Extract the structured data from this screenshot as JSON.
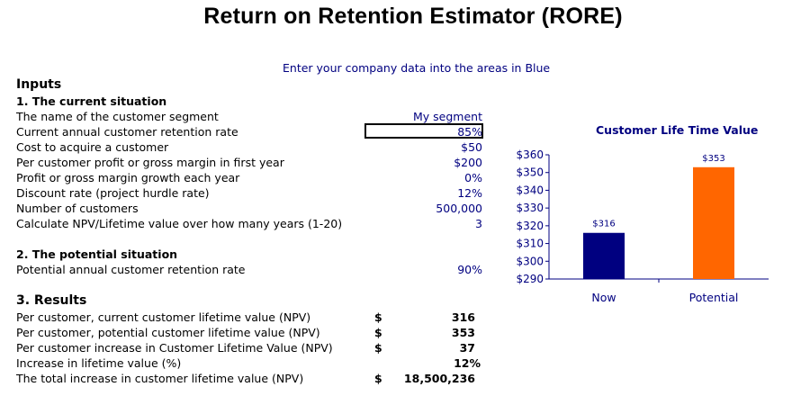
{
  "title": "Return on Retention Estimator (RORE)",
  "instruction": "Enter your company data into the areas in Blue",
  "inputs": {
    "heading": "Inputs",
    "current": {
      "heading": "1. The current situation",
      "rows": [
        {
          "label": "The name of the customer segment",
          "value": "My segment"
        },
        {
          "label": "Current annual customer retention rate",
          "value": "85%"
        },
        {
          "label": "Cost to acquire a customer",
          "value": "$50"
        },
        {
          "label": "Per customer profit or gross margin in first year",
          "value": "$200"
        },
        {
          "label": "Profit or gross margin growth each year",
          "value": "0%"
        },
        {
          "label": "Discount rate (project hurdle rate)",
          "value": "12%"
        },
        {
          "label": "Number of customers",
          "value": "500,000"
        },
        {
          "label": "Calculate NPV/Lifetime value over how many years (1-20)",
          "value": "3"
        }
      ]
    },
    "potential": {
      "heading": "2. The potential situation",
      "rows": [
        {
          "label": "Potential annual customer retention rate",
          "value": "90%"
        }
      ]
    }
  },
  "results": {
    "heading": "3. Results",
    "rows": [
      {
        "label": "Per customer, current customer lifetime value (NPV)",
        "currency": "$",
        "value": "316"
      },
      {
        "label": "Per customer, potential customer lifetime value (NPV)",
        "currency": "$",
        "value": "353"
      },
      {
        "label": "Per customer increase in Customer Lifetime Value (NPV)",
        "currency": "$",
        "value": "37"
      },
      {
        "label": "Increase in lifetime value (%)",
        "currency": "",
        "value": "12%"
      },
      {
        "label": "The total increase in customer lifetime value (NPV)",
        "currency": "$",
        "value": "18,500,236"
      }
    ]
  },
  "chart_data": {
    "type": "bar",
    "title": "Customer Life Time Value",
    "categories": [
      "Now",
      "Potential"
    ],
    "values": [
      316,
      353
    ],
    "data_labels": [
      "$316",
      "$353"
    ],
    "ylim": [
      290,
      360
    ],
    "y_ticks": [
      290,
      300,
      310,
      320,
      330,
      340,
      350,
      360
    ],
    "y_tick_labels": [
      "$290",
      "$300",
      "$310",
      "$320",
      "$330",
      "$340",
      "$350",
      "$360"
    ],
    "grid": false,
    "legend": "none",
    "colors": [
      "#000080",
      "#FF6600"
    ],
    "axis_color": "#000080"
  }
}
